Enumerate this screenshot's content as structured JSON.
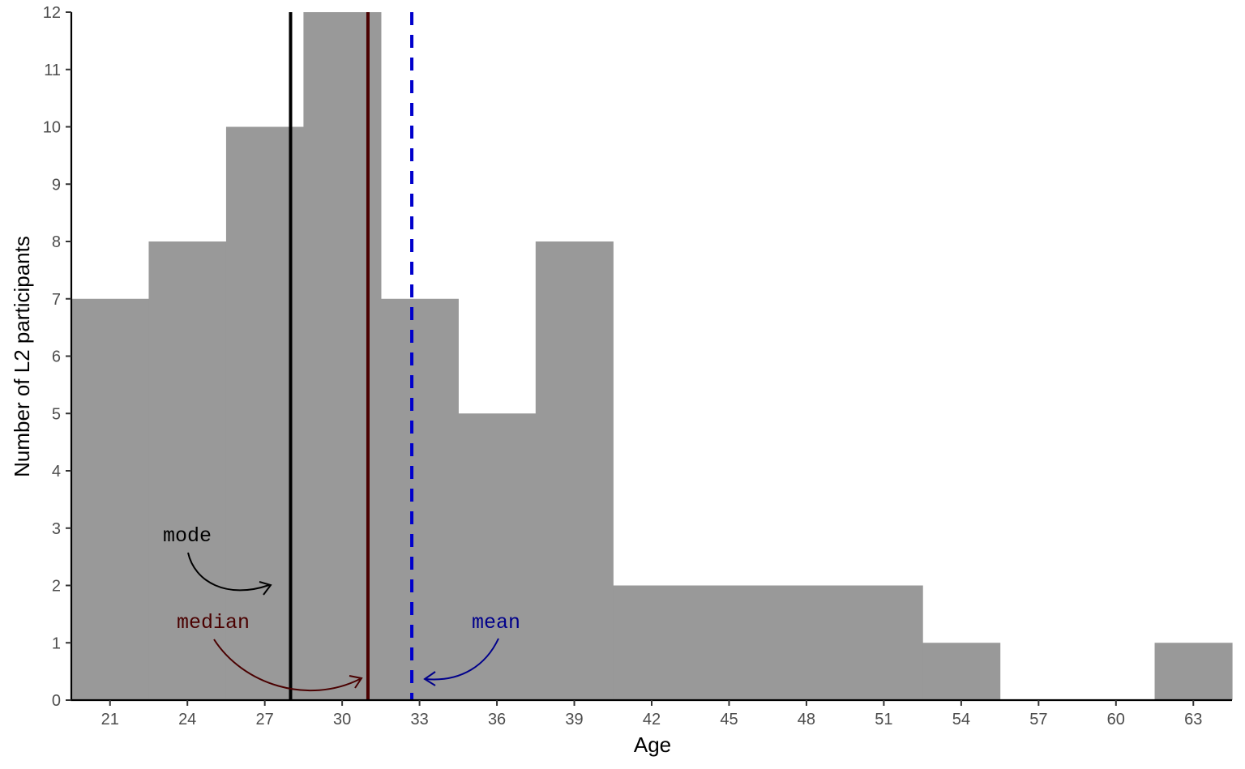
{
  "chart_data": {
    "type": "bar",
    "subtype": "histogram",
    "xlabel": "Age",
    "ylabel": "Number of L2 participants",
    "bin_width": 3,
    "bins": [
      {
        "from": 19.5,
        "to": 22.5,
        "count": 7
      },
      {
        "from": 22.5,
        "to": 25.5,
        "count": 8
      },
      {
        "from": 25.5,
        "to": 28.5,
        "count": 10
      },
      {
        "from": 28.5,
        "to": 31.5,
        "count": 12
      },
      {
        "from": 31.5,
        "to": 34.5,
        "count": 7
      },
      {
        "from": 34.5,
        "to": 37.5,
        "count": 5
      },
      {
        "from": 37.5,
        "to": 40.5,
        "count": 8
      },
      {
        "from": 40.5,
        "to": 43.5,
        "count": 2
      },
      {
        "from": 43.5,
        "to": 46.5,
        "count": 2
      },
      {
        "from": 46.5,
        "to": 49.5,
        "count": 2
      },
      {
        "from": 49.5,
        "to": 52.5,
        "count": 2
      },
      {
        "from": 52.5,
        "to": 55.5,
        "count": 1
      },
      {
        "from": 55.5,
        "to": 58.5,
        "count": 0
      },
      {
        "from": 58.5,
        "to": 61.5,
        "count": 0
      },
      {
        "from": 61.5,
        "to": 64.5,
        "count": 1
      }
    ],
    "xlim": [
      19.5,
      64.5
    ],
    "ylim": [
      0,
      12
    ],
    "x_ticks": [
      "21",
      "24",
      "27",
      "30",
      "33",
      "36",
      "39",
      "42",
      "45",
      "48",
      "51",
      "54",
      "57",
      "60",
      "63"
    ],
    "y_ticks": [
      "0",
      "1",
      "2",
      "3",
      "4",
      "5",
      "6",
      "7",
      "8",
      "9",
      "10",
      "11",
      "12"
    ],
    "bar_color": "#999999",
    "grid": false,
    "reference_lines": [
      {
        "label": "mode",
        "x": 28,
        "color": "#000000",
        "style": "solid"
      },
      {
        "label": "median",
        "x": 31,
        "color": "#4a0000",
        "style": "solid"
      },
      {
        "label": "mean",
        "x": 32.7,
        "color": "#0000cc",
        "style": "dashed"
      }
    ],
    "annotations": [
      {
        "text": "mode",
        "color": "#000000"
      },
      {
        "text": "median",
        "color": "#4a0000"
      },
      {
        "text": "mean",
        "color": "#00008b"
      }
    ]
  }
}
